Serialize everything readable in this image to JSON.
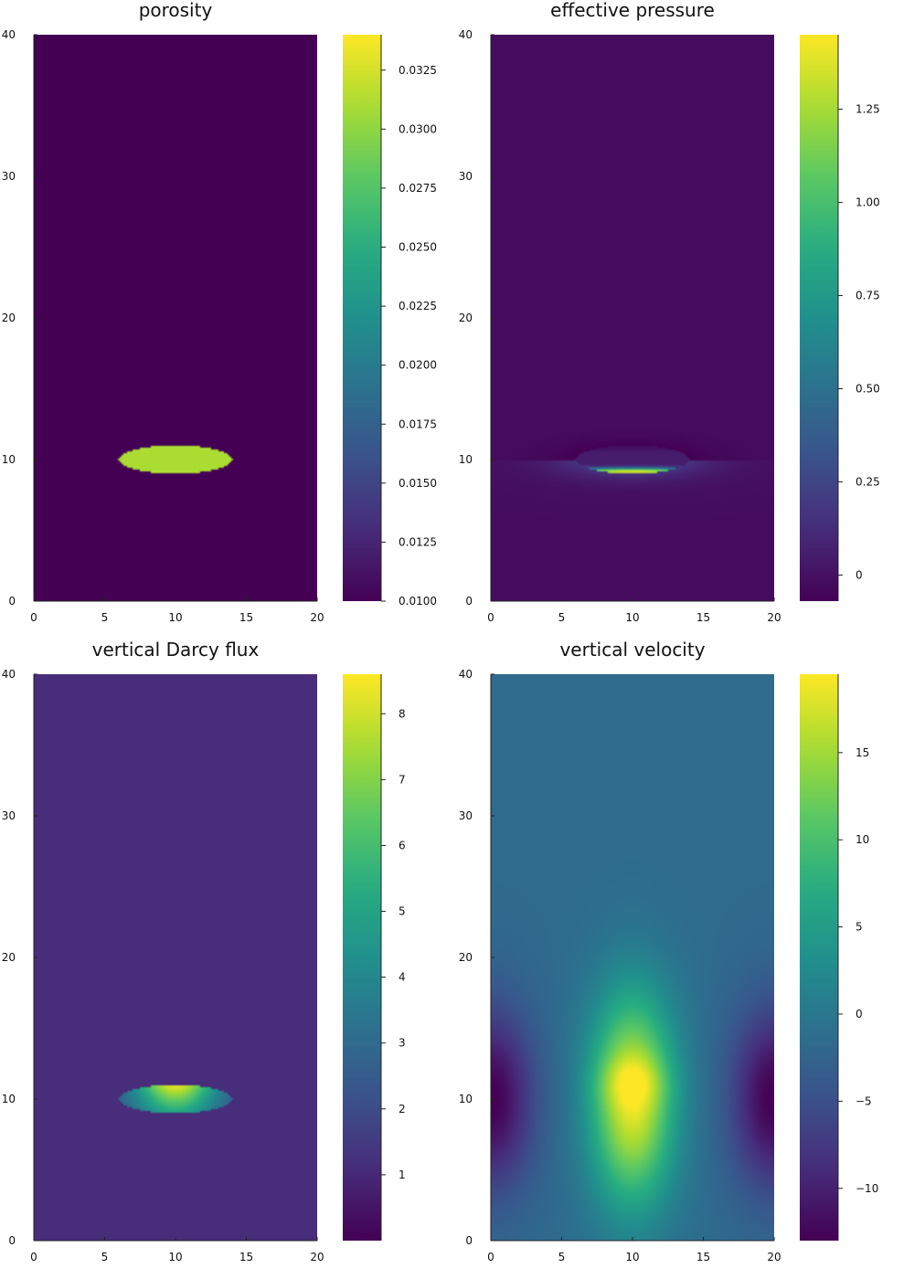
{
  "chart_data": [
    {
      "type": "heatmap",
      "title": "porosity",
      "xlim": [
        0,
        20
      ],
      "ylim": [
        0,
        40
      ],
      "x_ticks": [
        "0",
        "5",
        "10",
        "15",
        "20"
      ],
      "y_ticks": [
        "0",
        "10",
        "20",
        "30",
        "40"
      ],
      "colormap": "viridis",
      "clim": [
        0.01,
        0.034
      ],
      "colorbar_ticks": [
        "0.0100",
        "0.0125",
        "0.0150",
        "0.0175",
        "0.0200",
        "0.0225",
        "0.0250",
        "0.0275",
        "0.0300",
        "0.0325"
      ],
      "field": {
        "background": 0.01,
        "inclusion": {
          "center": [
            10,
            10
          ],
          "semi_axes": [
            4,
            1.0
          ],
          "value": 0.031
        }
      }
    },
    {
      "type": "heatmap",
      "title": "effective pressure",
      "xlim": [
        0,
        20
      ],
      "ylim": [
        0,
        40
      ],
      "x_ticks": [
        "0",
        "5",
        "10",
        "15",
        "20"
      ],
      "y_ticks": [
        "0",
        "10",
        "20",
        "30",
        "40"
      ],
      "colormap": "viridis",
      "clim": [
        -0.07,
        1.45
      ],
      "colorbar_ticks": [
        "0",
        "0.25",
        "0.50",
        "0.75",
        "1.00",
        "1.25"
      ],
      "field": {
        "background": 0.0,
        "inclusion": {
          "center": [
            10,
            10
          ],
          "semi_axes": [
            4,
            1.0
          ],
          "min": -0.07,
          "max": 1.45
        }
      }
    },
    {
      "type": "heatmap",
      "title": "vertical Darcy flux",
      "xlim": [
        0,
        20
      ],
      "ylim": [
        0,
        40
      ],
      "x_ticks": [
        "0",
        "5",
        "10",
        "15",
        "20"
      ],
      "y_ticks": [
        "0",
        "10",
        "20",
        "30",
        "40"
      ],
      "colormap": "viridis",
      "clim": [
        0.0,
        8.6
      ],
      "colorbar_ticks": [
        "1",
        "2",
        "3",
        "4",
        "5",
        "6",
        "7",
        "8"
      ],
      "field": {
        "background": 1.1,
        "inclusion": {
          "center": [
            10,
            10
          ],
          "semi_axes": [
            4,
            1.0
          ],
          "min": 2.0,
          "max": 8.6
        }
      }
    },
    {
      "type": "heatmap",
      "title": "vertical velocity",
      "xlim": [
        0,
        20
      ],
      "ylim": [
        0,
        40
      ],
      "x_ticks": [
        "0",
        "5",
        "10",
        "15",
        "20"
      ],
      "y_ticks": [
        "0",
        "10",
        "20",
        "30",
        "40"
      ],
      "colormap": "viridis",
      "clim": [
        -13,
        19.5
      ],
      "colorbar_ticks": [
        "−10",
        "−5",
        "0",
        "5",
        "10",
        "15"
      ],
      "field": {
        "far_field": -1.5,
        "center_peak": 19,
        "side_minimum": -13,
        "center": [
          10,
          10
        ]
      }
    }
  ]
}
